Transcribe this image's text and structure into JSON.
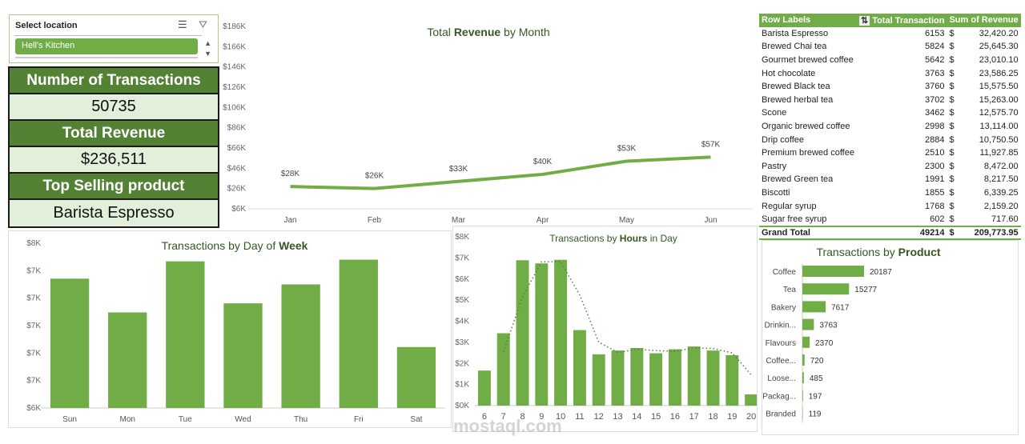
{
  "slicer": {
    "title": "Select location",
    "selected": "Hell's Kitchen",
    "icons": [
      "multi-select-icon",
      "clear-filter-icon"
    ]
  },
  "kpis": {
    "transactions_label": "Number of Transactions",
    "transactions_value": "50735",
    "revenue_label": "Total Revenue",
    "revenue_value": "$236,511",
    "top_label": "Top Selling product",
    "top_value": "Barista Espresso"
  },
  "pivot": {
    "headers": [
      "Row Labels",
      "Total Transaction",
      "Sum of Revenue"
    ],
    "rows": [
      [
        "Barista Espresso",
        "6153",
        "$",
        "32,420.20"
      ],
      [
        "Brewed Chai tea",
        "5824",
        "$",
        "25,645.30"
      ],
      [
        "Gourmet brewed coffee",
        "5642",
        "$",
        "23,010.10"
      ],
      [
        "Hot chocolate",
        "3763",
        "$",
        "23,586.25"
      ],
      [
        "Brewed Black tea",
        "3760",
        "$",
        "15,575.50"
      ],
      [
        "Brewed herbal tea",
        "3702",
        "$",
        "15,263.00"
      ],
      [
        "Scone",
        "3462",
        "$",
        "12,575.70"
      ],
      [
        "Organic brewed coffee",
        "2998",
        "$",
        "13,114.00"
      ],
      [
        "Drip coffee",
        "2884",
        "$",
        "10,750.50"
      ],
      [
        "Premium brewed coffee",
        "2510",
        "$",
        "11,927.85"
      ],
      [
        "Pastry",
        "2300",
        "$",
        "8,472.00"
      ],
      [
        "Brewed Green tea",
        "1991",
        "$",
        "8,217.50"
      ],
      [
        "Biscotti",
        "1855",
        "$",
        "6,339.25"
      ],
      [
        "Regular syrup",
        "1768",
        "$",
        "2,159.20"
      ],
      [
        "Sugar free syrup",
        "602",
        "$",
        "717.60"
      ]
    ],
    "total": [
      "Grand Total",
      "49214",
      "$",
      "209,773.95"
    ]
  },
  "chart_data": [
    {
      "type": "line",
      "title": "Total Revenue by Month",
      "title_bold": "Revenue",
      "categories": [
        "Jan",
        "Feb",
        "Mar",
        "Apr",
        "May",
        "Jun"
      ],
      "values": [
        28,
        26,
        33,
        40,
        53,
        57
      ],
      "data_labels": [
        "$28K",
        "$26K",
        "$33K",
        "$40K",
        "$53K",
        "$57K"
      ],
      "yunit": "K",
      "ylim": [
        6,
        186
      ],
      "yticks": [
        "$6K",
        "$26K",
        "$46K",
        "$66K",
        "$86K",
        "$106K",
        "$126K",
        "$146K",
        "$166K",
        "$186K"
      ],
      "color": "#70ad47"
    },
    {
      "type": "bar",
      "title": "Transactions by Day of Week",
      "title_bold": "Week",
      "categories": [
        "Sun",
        "Mon",
        "Tue",
        "Wed",
        "Thu",
        "Fri",
        "Sat"
      ],
      "values": [
        7.57,
        7.16,
        7.78,
        7.27,
        7.5,
        7.8,
        6.74
      ],
      "ylim": [
        6,
        8
      ],
      "yticks": [
        "$6K",
        "$7K",
        "$7K",
        "$7K",
        "$7K",
        "$7K",
        "$8K"
      ],
      "color": "#70ad47"
    },
    {
      "type": "bar",
      "title": "Transactions by Hours in Day",
      "title_bold": "Hours",
      "categories": [
        "6",
        "7",
        "8",
        "9",
        "10",
        "11",
        "12",
        "13",
        "14",
        "15",
        "16",
        "17",
        "18",
        "19",
        "20"
      ],
      "values": [
        1.66,
        3.43,
        6.89,
        6.74,
        6.91,
        3.58,
        2.43,
        2.61,
        2.73,
        2.48,
        2.67,
        2.8,
        2.61,
        2.39,
        0.53
      ],
      "ylim": [
        0,
        8
      ],
      "yticks": [
        "$0K",
        "$1K",
        "$2K",
        "$3K",
        "$4K",
        "$5K",
        "$6K",
        "$7K",
        "$8K"
      ],
      "trendline": "moving average (dotted)",
      "color": "#70ad47"
    },
    {
      "type": "bar",
      "orientation": "horizontal",
      "title": "Transactions by Product",
      "title_bold": "Product",
      "categories": [
        "Coffee",
        "Tea",
        "Bakery",
        "Drinkin...",
        "Flavours",
        "Coffee...",
        "Loose...",
        "Packag...",
        "Branded"
      ],
      "values": [
        20187,
        15277,
        7617,
        3763,
        2370,
        720,
        485,
        197,
        119
      ],
      "color": "#70ad47"
    }
  ],
  "watermark": "mostaql.com"
}
